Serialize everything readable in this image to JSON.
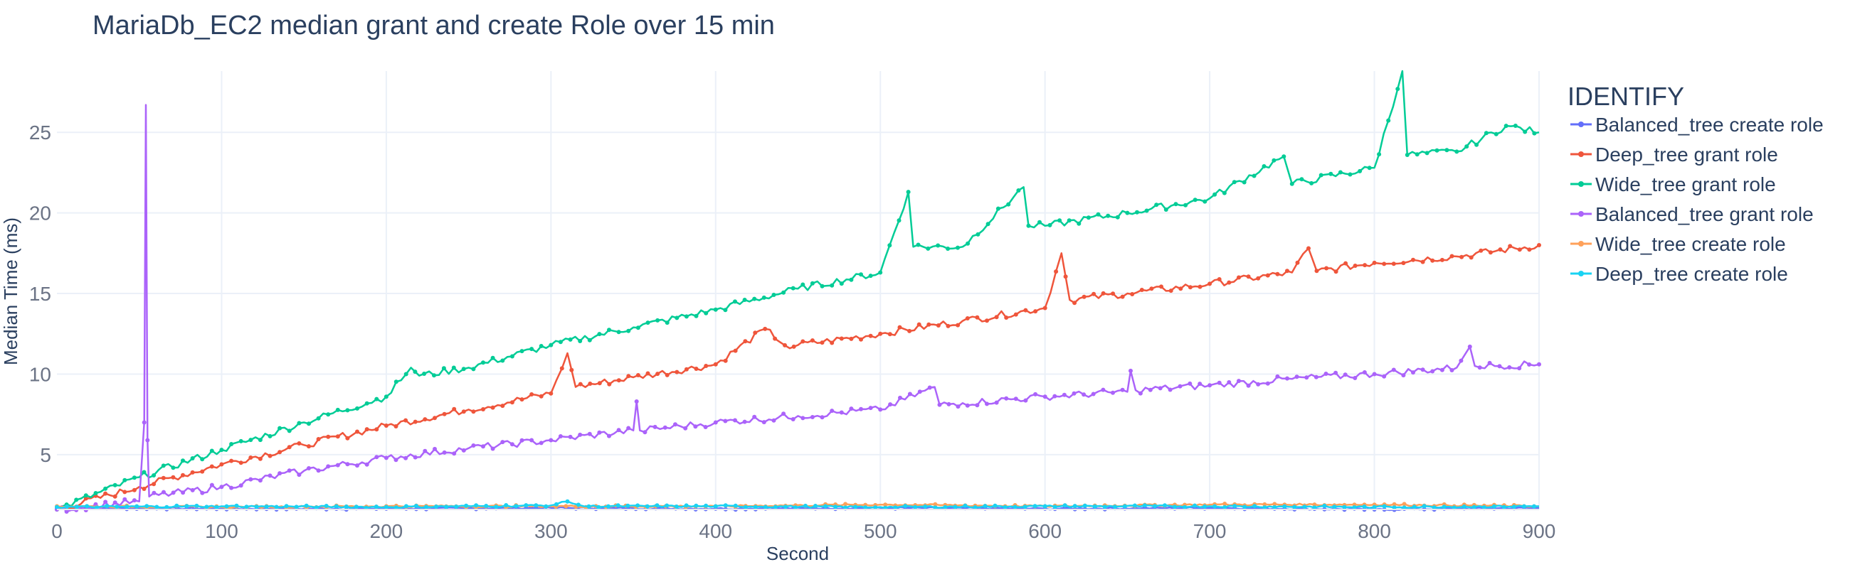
{
  "chart_data": {
    "type": "line",
    "title": "MariaDb_EC2 median grant and create Role over 15 min",
    "xlabel": "Second",
    "ylabel": "Median Time (ms)",
    "xlim": [
      0,
      900
    ],
    "ylim": [
      1.6,
      28.8
    ],
    "xticks": [
      0,
      100,
      200,
      300,
      400,
      500,
      600,
      700,
      800,
      900
    ],
    "yticks": [
      5,
      10,
      15,
      20,
      25
    ],
    "grid": true,
    "legend_title": "IDENTIFY",
    "legend_position": "right",
    "series": [
      {
        "name": "Balanced_tree create role",
        "color": "#636efa",
        "points": [
          [
            0,
            1.7
          ],
          [
            100,
            1.65
          ],
          [
            200,
            1.65
          ],
          [
            300,
            1.7
          ],
          [
            400,
            1.65
          ],
          [
            500,
            1.7
          ],
          [
            600,
            1.65
          ],
          [
            700,
            1.7
          ],
          [
            800,
            1.6
          ],
          [
            900,
            1.7
          ]
        ]
      },
      {
        "name": "Deep_tree grant role",
        "color": "#ef553b",
        "points": [
          [
            0,
            1.6
          ],
          [
            50,
            3.0
          ],
          [
            100,
            4.4
          ],
          [
            150,
            5.6
          ],
          [
            200,
            6.8
          ],
          [
            250,
            7.8
          ],
          [
            300,
            8.8
          ],
          [
            310,
            11.3
          ],
          [
            315,
            9.2
          ],
          [
            350,
            9.8
          ],
          [
            400,
            10.6
          ],
          [
            430,
            12.8
          ],
          [
            445,
            11.6
          ],
          [
            450,
            11.8
          ],
          [
            500,
            12.5
          ],
          [
            550,
            13.3
          ],
          [
            600,
            14.1
          ],
          [
            610,
            17.5
          ],
          [
            615,
            14.6
          ],
          [
            650,
            15.0
          ],
          [
            700,
            15.6
          ],
          [
            750,
            16.3
          ],
          [
            760,
            17.8
          ],
          [
            765,
            16.4
          ],
          [
            800,
            16.9
          ],
          [
            850,
            17.3
          ],
          [
            900,
            18.0
          ]
        ]
      },
      {
        "name": "Wide_tree grant role",
        "color": "#00cc96",
        "points": [
          [
            0,
            1.6
          ],
          [
            50,
            3.6
          ],
          [
            100,
            5.3
          ],
          [
            150,
            7.0
          ],
          [
            200,
            8.6
          ],
          [
            215,
            10.4
          ],
          [
            220,
            9.9
          ],
          [
            250,
            10.4
          ],
          [
            300,
            11.8
          ],
          [
            350,
            12.9
          ],
          [
            400,
            14.0
          ],
          [
            450,
            15.3
          ],
          [
            500,
            16.3
          ],
          [
            517,
            21.3
          ],
          [
            520,
            17.9
          ],
          [
            550,
            17.9
          ],
          [
            587,
            21.6
          ],
          [
            590,
            19.2
          ],
          [
            600,
            19.2
          ],
          [
            650,
            20.0
          ],
          [
            700,
            20.9
          ],
          [
            745,
            23.5
          ],
          [
            750,
            21.8
          ],
          [
            800,
            22.8
          ],
          [
            817,
            28.8
          ],
          [
            820,
            23.6
          ],
          [
            850,
            23.8
          ],
          [
            880,
            25.4
          ],
          [
            900,
            25.0
          ]
        ]
      },
      {
        "name": "Balanced_tree grant role",
        "color": "#ab63fa",
        "points": [
          [
            0,
            1.6
          ],
          [
            50,
            2.1
          ],
          [
            53,
            7.0
          ],
          [
            54,
            26.7
          ],
          [
            55,
            5.9
          ],
          [
            56,
            2.4
          ],
          [
            100,
            3.0
          ],
          [
            150,
            4.0
          ],
          [
            200,
            4.8
          ],
          [
            250,
            5.4
          ],
          [
            300,
            5.9
          ],
          [
            350,
            6.5
          ],
          [
            352,
            8.3
          ],
          [
            354,
            6.5
          ],
          [
            400,
            7.0
          ],
          [
            450,
            7.4
          ],
          [
            500,
            7.8
          ],
          [
            533,
            9.2
          ],
          [
            536,
            8.1
          ],
          [
            550,
            8.2
          ],
          [
            600,
            8.6
          ],
          [
            650,
            8.9
          ],
          [
            652,
            10.2
          ],
          [
            655,
            9.0
          ],
          [
            700,
            9.3
          ],
          [
            750,
            9.7
          ],
          [
            800,
            10.0
          ],
          [
            850,
            10.4
          ],
          [
            858,
            11.7
          ],
          [
            861,
            10.5
          ],
          [
            900,
            10.6
          ]
        ]
      },
      {
        "name": "Wide_tree create role",
        "color": "#ffa15a",
        "points": [
          [
            0,
            1.8
          ],
          [
            100,
            1.75
          ],
          [
            200,
            1.8
          ],
          [
            300,
            1.8
          ],
          [
            400,
            1.8
          ],
          [
            500,
            1.9
          ],
          [
            600,
            1.8
          ],
          [
            700,
            1.9
          ],
          [
            800,
            1.9
          ],
          [
            900,
            1.8
          ]
        ]
      },
      {
        "name": "Deep_tree create role",
        "color": "#19d3f3",
        "points": [
          [
            0,
            1.75
          ],
          [
            100,
            1.8
          ],
          [
            200,
            1.75
          ],
          [
            300,
            1.85
          ],
          [
            310,
            2.1
          ],
          [
            320,
            1.8
          ],
          [
            400,
            1.8
          ],
          [
            500,
            1.75
          ],
          [
            600,
            1.8
          ],
          [
            700,
            1.8
          ],
          [
            800,
            1.75
          ],
          [
            900,
            1.8
          ]
        ]
      }
    ]
  }
}
